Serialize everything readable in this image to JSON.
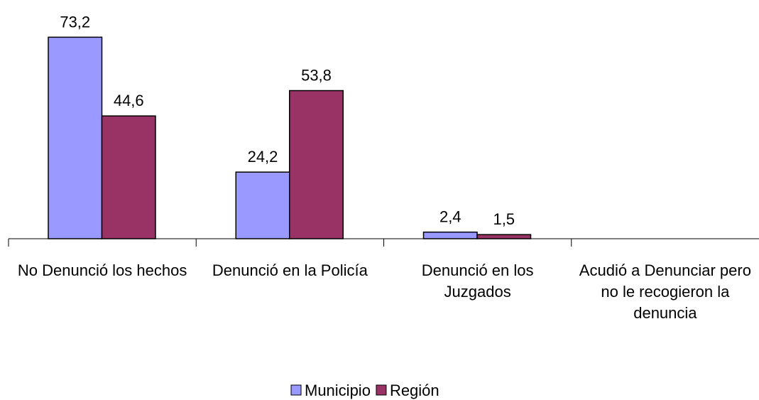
{
  "chart_data": {
    "type": "bar",
    "categories": [
      "No Denunció los hechos",
      "Denunció en la Policía",
      "Denunció en los Juzgados",
      "Acudió a Denunciar pero no le recogieron la denuncia"
    ],
    "series": [
      {
        "name": "Municipio",
        "color": "#9999ff",
        "values": [
          73.2,
          24.2,
          2.4,
          null
        ],
        "value_labels": [
          "73,2",
          "24,2",
          "2,4",
          null
        ]
      },
      {
        "name": "Región",
        "color": "#993366",
        "values": [
          44.6,
          53.8,
          1.5,
          null
        ],
        "value_labels": [
          "44,6",
          "53,8",
          "1,5",
          null
        ]
      }
    ],
    "ylim": [
      0,
      80
    ]
  }
}
